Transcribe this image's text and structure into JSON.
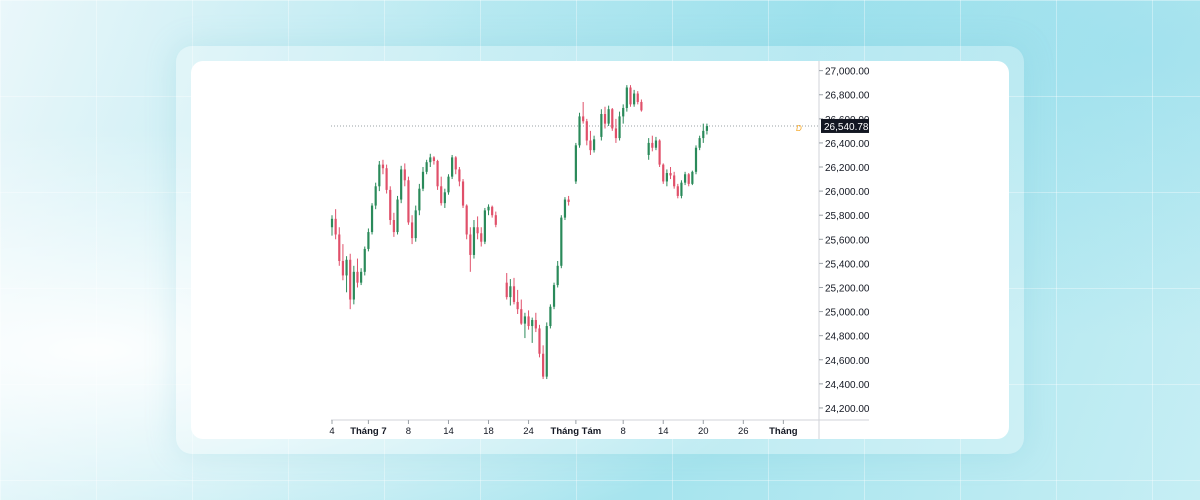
{
  "chart_data": {
    "type": "candlestick",
    "title": "",
    "xlabel": "",
    "ylabel": "",
    "ylim": [
      24100,
      27080
    ],
    "colors": {
      "up": "#2a8a5a",
      "down": "#e0506a",
      "last_price_bg": "#131722",
      "last_price_text": "#ffffff",
      "marker": "#f5a623"
    },
    "y_ticks": [
      "27,000.00",
      "26,800.00",
      "26,600.00",
      "26,400.00",
      "26,200.00",
      "26,000.00",
      "25,800.00",
      "25,600.00",
      "25,400.00",
      "25,200.00",
      "25,000.00",
      "24,800.00",
      "24,600.00",
      "24,400.00",
      "24,200.00"
    ],
    "y_tick_values": [
      27000,
      26800,
      26600,
      26400,
      26200,
      26000,
      25800,
      25600,
      25400,
      25200,
      25000,
      24800,
      24600,
      24400,
      24200
    ],
    "x_tick_labels": [
      {
        "label": "4",
        "bar": 0,
        "bold": false
      },
      {
        "label": "Tháng 7",
        "bar": 10,
        "bold": true
      },
      {
        "label": "8",
        "bar": 21,
        "bold": false
      },
      {
        "label": "14",
        "bar": 32,
        "bold": false
      },
      {
        "label": "18",
        "bar": 43,
        "bold": false
      },
      {
        "label": "24",
        "bar": 54,
        "bold": false
      },
      {
        "label": "Tháng Tám",
        "bar": 67,
        "bold": true
      },
      {
        "label": "8",
        "bar": 80,
        "bold": false
      },
      {
        "label": "14",
        "bar": 91,
        "bold": false
      },
      {
        "label": "20",
        "bar": 102,
        "bold": false
      },
      {
        "label": "26",
        "bar": 113,
        "bold": false
      },
      {
        "label": "Tháng",
        "bar": 124,
        "bold": true
      }
    ],
    "last_price": 26540.78,
    "last_price_label": "26,540.78",
    "marker_label": "D",
    "candles": [
      [
        25700,
        25800,
        25630,
        25770
      ],
      [
        25770,
        25850,
        25600,
        25640
      ],
      [
        25640,
        25700,
        25380,
        25420
      ],
      [
        25420,
        25560,
        25260,
        25300
      ],
      [
        25300,
        25460,
        25160,
        25430
      ],
      [
        25430,
        25480,
        25020,
        25100
      ],
      [
        25100,
        25380,
        25060,
        25330
      ],
      [
        25330,
        25440,
        25200,
        25240
      ],
      [
        25240,
        25360,
        25220,
        25330
      ],
      [
        25330,
        25540,
        25300,
        25520
      ],
      [
        25520,
        25690,
        25500,
        25660
      ],
      [
        25660,
        25900,
        25640,
        25880
      ],
      [
        25880,
        26070,
        25850,
        26040
      ],
      [
        26040,
        26250,
        26000,
        26220
      ],
      [
        26220,
        26260,
        26140,
        26190
      ],
      [
        26190,
        26220,
        25980,
        26010
      ],
      [
        26010,
        26040,
        25720,
        25760
      ],
      [
        25760,
        25820,
        25620,
        25660
      ],
      [
        25660,
        25960,
        25640,
        25930
      ],
      [
        25930,
        26210,
        25900,
        26180
      ],
      [
        26180,
        26230,
        26040,
        26090
      ],
      [
        26090,
        26120,
        25720,
        25740
      ],
      [
        25740,
        25800,
        25560,
        25610
      ],
      [
        25610,
        25880,
        25580,
        25840
      ],
      [
        25840,
        26060,
        25800,
        26020
      ],
      [
        26020,
        26200,
        26000,
        26160
      ],
      [
        26160,
        26260,
        26140,
        26240
      ],
      [
        26240,
        26310,
        26200,
        26280
      ],
      [
        26280,
        26290,
        26220,
        26250
      ],
      [
        26250,
        26260,
        26010,
        26040
      ],
      [
        26040,
        26120,
        25880,
        25900
      ],
      [
        25900,
        26020,
        25860,
        25990
      ],
      [
        25990,
        26140,
        25970,
        26120
      ],
      [
        26120,
        26300,
        26100,
        26280
      ],
      [
        26280,
        26290,
        26140,
        26180
      ],
      [
        26180,
        26200,
        26040,
        26080
      ],
      [
        26080,
        26100,
        25860,
        25880
      ],
      [
        25880,
        25890,
        25600,
        25640
      ],
      [
        25640,
        25700,
        25330,
        25470
      ],
      [
        25470,
        25760,
        25440,
        25700
      ],
      [
        25700,
        25790,
        25600,
        25650
      ],
      [
        25650,
        25700,
        25540,
        25580
      ],
      [
        25580,
        25860,
        25560,
        25840
      ],
      [
        25840,
        25890,
        25800,
        25870
      ],
      [
        25870,
        25880,
        25780,
        25800
      ],
      [
        25800,
        25830,
        25700,
        25720
      ],
      null,
      null,
      [
        25240,
        25320,
        25100,
        25120
      ],
      [
        25120,
        25270,
        25050,
        25210
      ],
      [
        25210,
        25280,
        25060,
        25080
      ],
      [
        25080,
        25180,
        24980,
        25020
      ],
      [
        25020,
        25100,
        24890,
        24900
      ],
      [
        24900,
        24990,
        24780,
        24960
      ],
      [
        24960,
        25010,
        24850,
        24880
      ],
      [
        24880,
        24950,
        24740,
        24930
      ],
      [
        24930,
        24990,
        24830,
        24860
      ],
      [
        24860,
        24890,
        24620,
        24650
      ],
      [
        24650,
        24720,
        24440,
        24460
      ],
      [
        24460,
        24910,
        24440,
        24880
      ],
      [
        24880,
        25060,
        24860,
        25040
      ],
      [
        25040,
        25240,
        25020,
        25220
      ],
      [
        25220,
        25420,
        25200,
        25380
      ],
      [
        25380,
        25800,
        25360,
        25780
      ],
      [
        25780,
        25950,
        25760,
        25930
      ],
      [
        25930,
        25960,
        25880,
        25910
      ],
      null,
      [
        26080,
        26400,
        26060,
        26380
      ],
      [
        26380,
        26650,
        26360,
        26620
      ],
      [
        26620,
        26740,
        26560,
        26580
      ],
      [
        26580,
        26600,
        26380,
        26420
      ],
      [
        26420,
        26500,
        26300,
        26340
      ],
      [
        26340,
        26460,
        26320,
        26430
      ],
      null,
      [
        26450,
        26680,
        26420,
        26640
      ],
      [
        26640,
        26700,
        26520,
        26560
      ],
      [
        26560,
        26710,
        26540,
        26680
      ],
      [
        26680,
        26690,
        26500,
        26520
      ],
      [
        26520,
        26600,
        26400,
        26440
      ],
      [
        26440,
        26660,
        26420,
        26620
      ],
      [
        26620,
        26720,
        26560,
        26690
      ],
      [
        26690,
        26880,
        26660,
        26860
      ],
      [
        26860,
        26880,
        26700,
        26720
      ],
      [
        26720,
        26840,
        26700,
        26810
      ],
      [
        26810,
        26830,
        26720,
        26740
      ],
      [
        26740,
        26760,
        26660,
        26670
      ],
      null,
      [
        26300,
        26440,
        26260,
        26400
      ],
      [
        26400,
        26460,
        26330,
        26360
      ],
      [
        26360,
        26450,
        26340,
        26420
      ],
      [
        26420,
        26430,
        26200,
        26220
      ],
      [
        26220,
        26230,
        26060,
        26080
      ],
      [
        26080,
        26180,
        26040,
        26150
      ],
      [
        26150,
        26200,
        26100,
        26130
      ],
      [
        26130,
        26160,
        26020,
        26040
      ],
      [
        26040,
        26060,
        25940,
        25960
      ],
      [
        25960,
        26090,
        25940,
        26070
      ],
      [
        26070,
        26160,
        26050,
        26140
      ],
      [
        26140,
        26150,
        26040,
        26060
      ],
      [
        26060,
        26170,
        26050,
        26160
      ],
      [
        26160,
        26380,
        26140,
        26360
      ],
      [
        26360,
        26460,
        26340,
        26440
      ],
      [
        26440,
        26560,
        26400,
        26500
      ],
      [
        26500,
        26560,
        26470,
        26540
      ]
    ]
  }
}
